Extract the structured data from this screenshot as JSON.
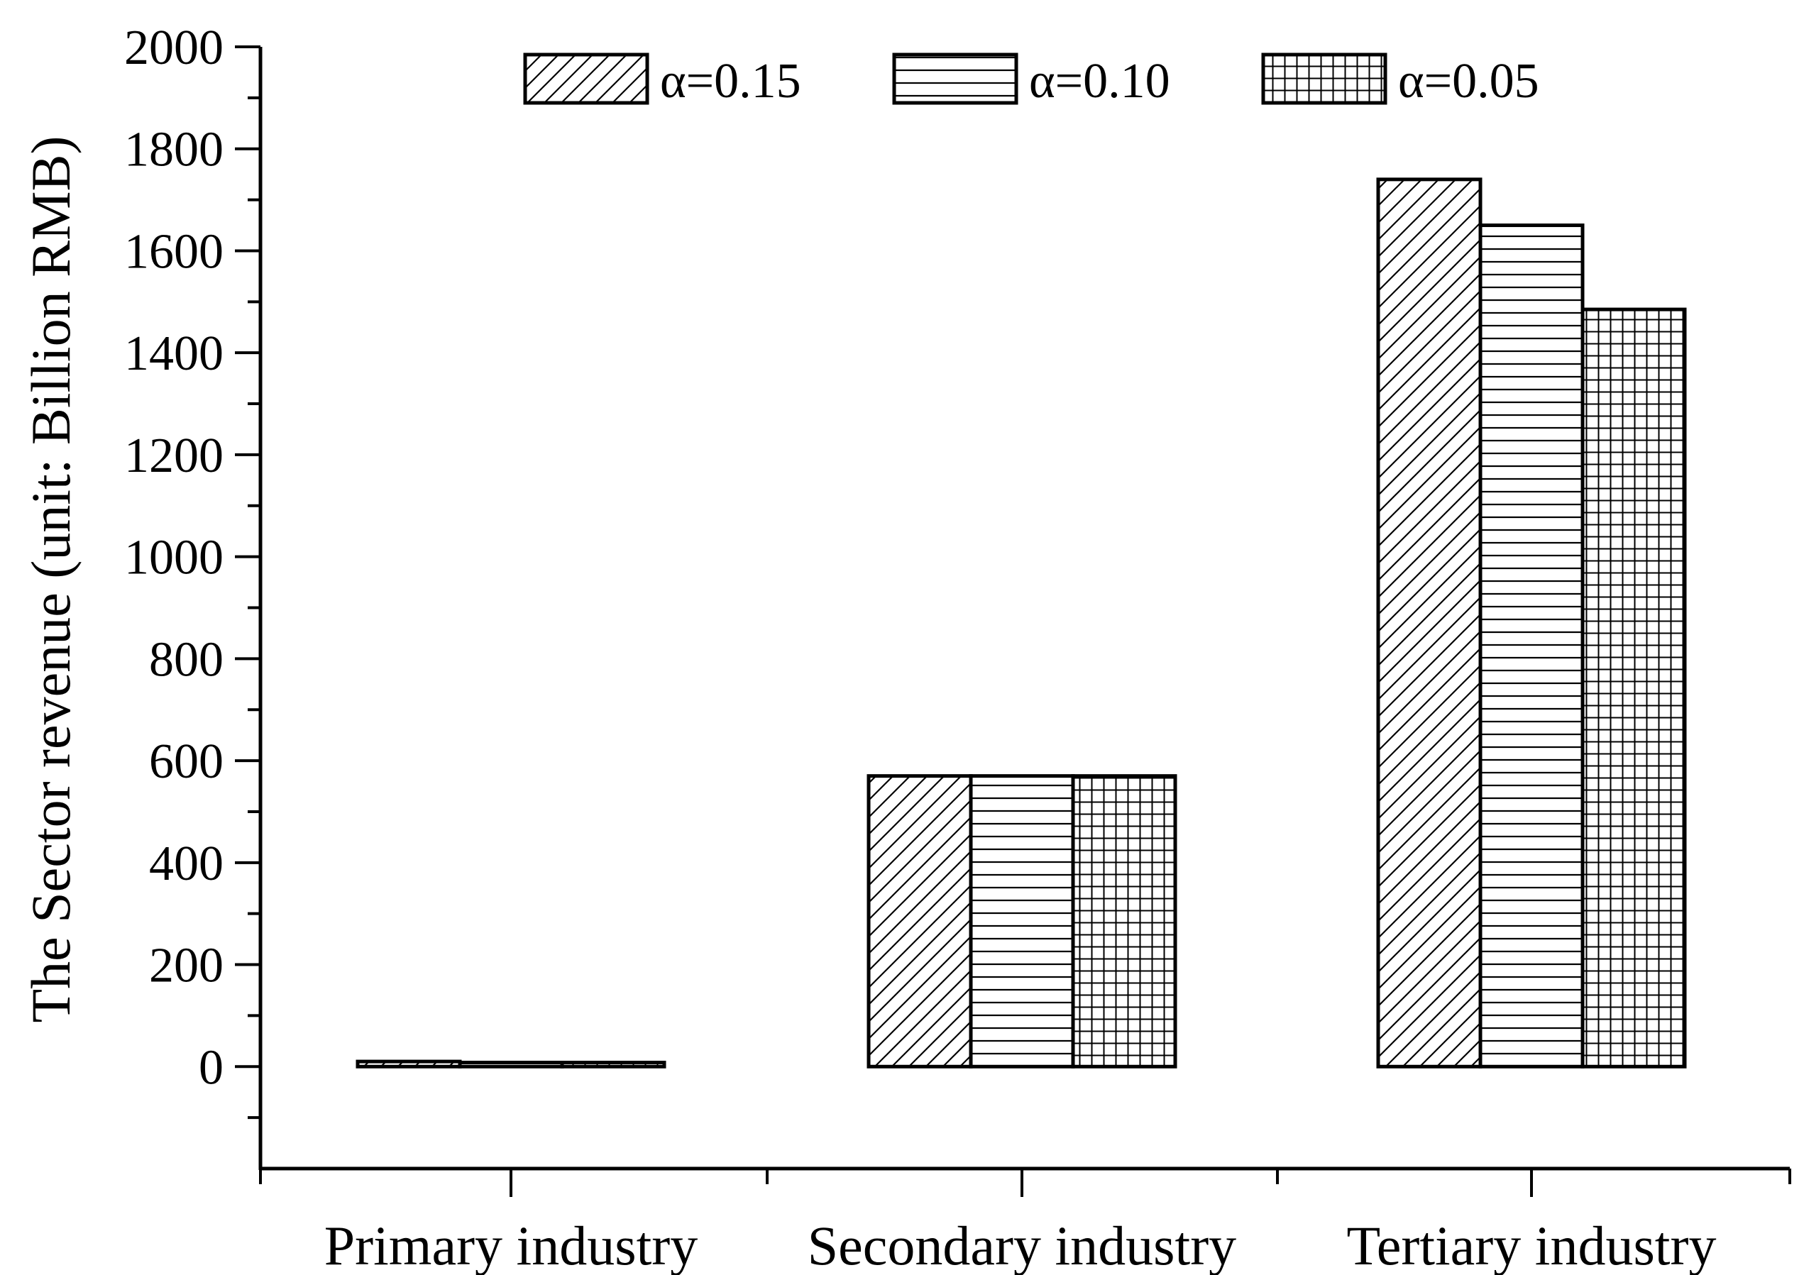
{
  "chart_data": {
    "type": "bar",
    "title": "",
    "xlabel": "",
    "ylabel": "The Sector revenue (unit: Billion RMB)",
    "categories": [
      "Primary industry",
      "Secondary industry",
      "Tertiary industry"
    ],
    "series": [
      {
        "name": "α=0.15",
        "pattern": "diagonal",
        "values": [
          10,
          570,
          1740
        ]
      },
      {
        "name": "α=0.10",
        "pattern": "horizontal",
        "values": [
          8,
          570,
          1650
        ]
      },
      {
        "name": "α=0.05",
        "pattern": "grid",
        "values": [
          8,
          570,
          1485
        ]
      }
    ],
    "ylim": [
      -200,
      2000
    ],
    "yticks": [
      0,
      200,
      400,
      600,
      800,
      1000,
      1200,
      1400,
      1600,
      1800,
      2000
    ],
    "grid": false,
    "legend_position": "top-center",
    "colors": {
      "stroke": "#000000",
      "fill": "#ffffff"
    }
  }
}
